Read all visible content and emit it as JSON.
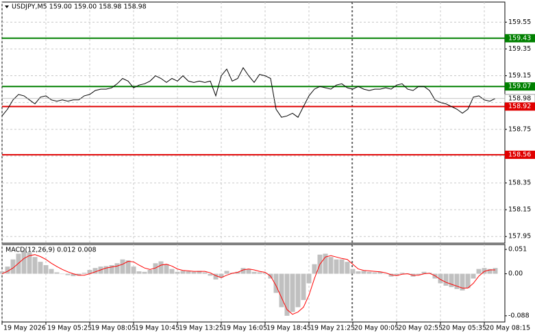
{
  "chart_data": [
    {
      "type": "line",
      "title": "USDJPY,M5  159.00 159.00 158.98 158.98",
      "x": [
        "19 May 2026",
        null,
        null,
        null,
        null,
        null,
        null,
        null,
        "19 May 05:25",
        null,
        null,
        null,
        null,
        null,
        null,
        null,
        "19 May 08:05",
        null,
        null,
        null,
        null,
        null,
        null,
        null,
        "19 May 10:45",
        null,
        null,
        null,
        null,
        null,
        null,
        null,
        "19 May 13:25",
        null,
        null,
        null,
        null,
        null,
        null,
        null,
        "19 May 16:05",
        null,
        null,
        null,
        null,
        null,
        null,
        null,
        "19 May 18:45",
        null,
        null,
        null,
        null,
        null,
        null,
        null,
        "19 May 21:25",
        null,
        null,
        null,
        null,
        null,
        null,
        null,
        "20 May 00:05",
        null,
        null,
        null,
        null,
        null,
        null,
        null,
        "20 May 02:55",
        null,
        null,
        null,
        null,
        null,
        null,
        null,
        "20 May 05:35",
        null,
        null,
        null,
        null,
        null,
        null,
        null,
        "20 May 08:15",
        null,
        null
      ],
      "values": [
        158.85,
        158.9,
        158.97,
        159.01,
        159.0,
        158.97,
        158.94,
        158.99,
        159.0,
        158.97,
        158.96,
        158.97,
        158.96,
        158.97,
        158.97,
        159.0,
        159.01,
        159.04,
        159.05,
        159.05,
        159.06,
        159.09,
        159.13,
        159.11,
        159.06,
        159.08,
        159.09,
        159.11,
        159.15,
        159.13,
        159.1,
        159.13,
        159.11,
        159.15,
        159.11,
        159.1,
        159.11,
        159.1,
        159.11,
        159.0,
        159.15,
        159.2,
        159.11,
        159.13,
        159.21,
        159.15,
        159.1,
        159.16,
        159.15,
        159.13,
        158.9,
        158.84,
        158.85,
        158.87,
        158.84,
        158.92,
        159.0,
        159.05,
        159.07,
        159.06,
        159.05,
        159.08,
        159.09,
        159.06,
        159.05,
        159.07,
        159.05,
        159.04,
        159.05,
        159.05,
        159.06,
        159.05,
        159.08,
        159.09,
        159.05,
        159.04,
        159.07,
        159.07,
        159.04,
        158.97,
        158.95,
        158.94,
        158.92,
        158.9,
        158.87,
        158.9,
        158.99,
        159.0,
        158.97,
        158.96,
        158.98
      ],
      "color": "#000000",
      "ylim": [
        157.9,
        159.7
      ],
      "yticks": [
        159.55,
        159.35,
        159.15,
        158.95,
        158.75,
        158.55,
        158.35,
        158.15,
        157.95
      ],
      "grid": true,
      "levels": [
        {
          "value": 159.43,
          "color": "#008000"
        },
        {
          "value": 159.07,
          "color": "#008000"
        },
        {
          "value": 158.92,
          "color": "#e00000"
        },
        {
          "value": 158.56,
          "color": "#e00000"
        }
      ]
    },
    {
      "type": "macd",
      "title": "MACD(12,26,9) 0.012 0.008",
      "histogram": {
        "color": "#c0c0c0",
        "values": [
          0.005,
          0.015,
          0.03,
          0.042,
          0.048,
          0.045,
          0.035,
          0.025,
          0.018,
          0.01,
          0.003,
          0,
          -0.003,
          -0.005,
          -0.004,
          0.002,
          0.008,
          0.012,
          0.015,
          0.016,
          0.018,
          0.022,
          0.03,
          0.028,
          0.015,
          0.005,
          0.004,
          0.008,
          0.022,
          0.026,
          0.02,
          0.01,
          0.004,
          0.006,
          0.005,
          0.004,
          0.006,
          0.003,
          -0.004,
          -0.012,
          -0.008,
          0.006,
          0.002,
          0.004,
          0.012,
          0.01,
          0.004,
          0.003,
          0.002,
          -0.01,
          -0.04,
          -0.07,
          -0.088,
          -0.08,
          -0.07,
          -0.055,
          -0.02,
          0.02,
          0.04,
          0.042,
          0.035,
          0.03,
          0.03,
          0.025,
          0.01,
          0.005,
          0.006,
          0.004,
          0.003,
          0.004,
          0,
          -0.006,
          -0.004,
          0.002,
          0.001,
          -0.006,
          -0.002,
          0.004,
          0.002,
          -0.01,
          -0.02,
          -0.025,
          -0.028,
          -0.032,
          -0.035,
          -0.03,
          -0.01,
          0.01,
          0.012,
          0.01,
          0.012
        ]
      },
      "signal": {
        "color": "#ff0000",
        "values": [
          0.0,
          0.005,
          0.012,
          0.022,
          0.032,
          0.038,
          0.04,
          0.036,
          0.03,
          0.022,
          0.015,
          0.009,
          0.004,
          0.0,
          -0.003,
          -0.003,
          0.0,
          0.004,
          0.008,
          0.012,
          0.014,
          0.016,
          0.02,
          0.026,
          0.025,
          0.018,
          0.012,
          0.009,
          0.012,
          0.018,
          0.02,
          0.016,
          0.01,
          0.007,
          0.006,
          0.005,
          0.005,
          0.005,
          0.002,
          -0.004,
          -0.008,
          -0.003,
          0.001,
          0.003,
          0.008,
          0.01,
          0.008,
          0.005,
          0.003,
          -0.005,
          -0.025,
          -0.05,
          -0.075,
          -0.085,
          -0.08,
          -0.07,
          -0.045,
          -0.01,
          0.02,
          0.035,
          0.038,
          0.035,
          0.032,
          0.03,
          0.02,
          0.01,
          0.007,
          0.006,
          0.005,
          0.004,
          0.002,
          -0.002,
          -0.004,
          -0.001,
          0.0,
          -0.003,
          -0.003,
          0.0,
          0.001,
          -0.004,
          -0.012,
          -0.018,
          -0.022,
          -0.026,
          -0.03,
          -0.03,
          -0.02,
          -0.005,
          0.005,
          0.008,
          0.008
        ]
      },
      "ylim": [
        -0.101,
        0.0611
      ],
      "yticks": [
        0.051,
        {
          "value": 0,
          "label": "0.00"
        },
        -0.088
      ]
    }
  ]
}
